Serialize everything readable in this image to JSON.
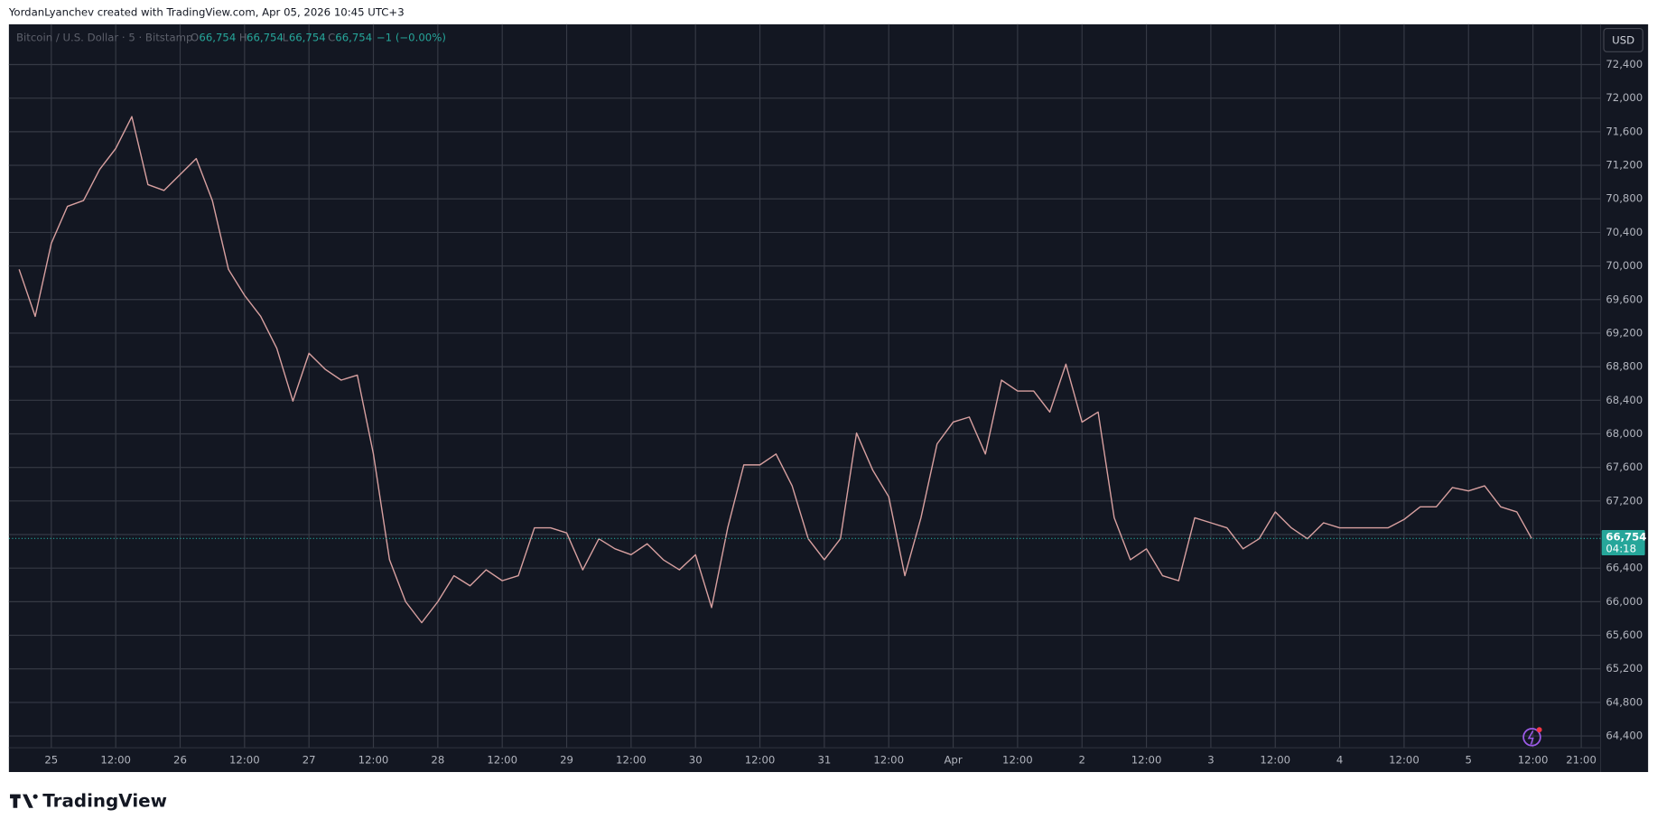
{
  "header": {
    "caption": "YordanLyanchev created with TradingView.com, Apr 05, 2026 10:45 UTC+3"
  },
  "legend": {
    "symbol": "Bitcoin / U.S. Dollar · 5 · Bitstamp",
    "open_key": "O",
    "open": "66,754",
    "high_key": "H",
    "high": "66,754",
    "low_key": "L",
    "low": "66,754",
    "close_key": "C",
    "close": "66,754",
    "change": "−1 (−0.00%)"
  },
  "currency_button": "USD",
  "footer": {
    "logo": "TradingView"
  },
  "chart_data": {
    "type": "line",
    "x": [
      -6,
      -3,
      0,
      3,
      6,
      9,
      12,
      15,
      18,
      21,
      24,
      27,
      30,
      33,
      36,
      39,
      42,
      45,
      48,
      51,
      54,
      57,
      60,
      63,
      66,
      69,
      72,
      75,
      78,
      81,
      84,
      87,
      90,
      93,
      96,
      99,
      102,
      105,
      108,
      111,
      114,
      117,
      120,
      123,
      126,
      129,
      132,
      135,
      138,
      141,
      144,
      147,
      150,
      153,
      156,
      159,
      162,
      165,
      168,
      171,
      174,
      177,
      180,
      183,
      186,
      189,
      192,
      195,
      198,
      201,
      204,
      207,
      210,
      213,
      216,
      219,
      222,
      225,
      228,
      231,
      234,
      237,
      240,
      243,
      246,
      249,
      252,
      255,
      258,
      261,
      264,
      267,
      270,
      273,
      275.75
    ],
    "series": [
      {
        "name": "Bitcoin / U.S. Dollar",
        "color": "#d8a0a0",
        "values": [
          69960,
          69400,
          70270,
          70710,
          70780,
          71150,
          71400,
          71780,
          70970,
          70900,
          71090,
          71280,
          70780,
          69960,
          69650,
          69400,
          69020,
          68390,
          68960,
          68770,
          68640,
          68700,
          67760,
          66500,
          66000,
          65750,
          66000,
          66310,
          66190,
          66380,
          66250,
          66310,
          66880,
          66880,
          66820,
          66380,
          66750,
          66630,
          66560,
          66690,
          66500,
          66380,
          66560,
          65930,
          66880,
          67630,
          67630,
          67760,
          67380,
          66750,
          66500,
          66750,
          68010,
          67570,
          67250,
          66310,
          67000,
          67880,
          68140,
          68200,
          67760,
          68640,
          68510,
          68510,
          68260,
          68830,
          68140,
          68260,
          67000,
          66500,
          66630,
          66310,
          66250,
          67000,
          66940,
          66880,
          66630,
          66750,
          67070,
          66880,
          66750,
          66940,
          66880,
          66880,
          66880,
          66880,
          66980,
          67130,
          67130,
          67360,
          67320,
          67380,
          67130,
          67070,
          66754
        ]
      }
    ],
    "last_price_label": "66,754",
    "countdown": "04:18",
    "xlim": [
      -7.9,
      288.6
    ],
    "xticks": [
      {
        "value": 0,
        "label": "25"
      },
      {
        "value": 12,
        "label": "12:00"
      },
      {
        "value": 24,
        "label": "26"
      },
      {
        "value": 36,
        "label": "12:00"
      },
      {
        "value": 48,
        "label": "27"
      },
      {
        "value": 60,
        "label": "12:00"
      },
      {
        "value": 72,
        "label": "28"
      },
      {
        "value": 84,
        "label": "12:00"
      },
      {
        "value": 96,
        "label": "29"
      },
      {
        "value": 108,
        "label": "12:00"
      },
      {
        "value": 120,
        "label": "30"
      },
      {
        "value": 132,
        "label": "12:00"
      },
      {
        "value": 144,
        "label": "31"
      },
      {
        "value": 156,
        "label": "12:00"
      },
      {
        "value": 168,
        "label": "Apr"
      },
      {
        "value": 180,
        "label": "12:00"
      },
      {
        "value": 192,
        "label": "2"
      },
      {
        "value": 204,
        "label": "12:00"
      },
      {
        "value": 216,
        "label": "3"
      },
      {
        "value": 228,
        "label": "12:00"
      },
      {
        "value": 240,
        "label": "4"
      },
      {
        "value": 252,
        "label": "12:00"
      },
      {
        "value": 264,
        "label": "5"
      },
      {
        "value": 276,
        "label": "12:00"
      },
      {
        "value": 285,
        "label": "21:00"
      }
    ],
    "ylim": [
      64260,
      72880
    ],
    "yticks": [
      {
        "value": 64400,
        "label": "64,400"
      },
      {
        "value": 64800,
        "label": "64,800"
      },
      {
        "value": 65200,
        "label": "65,200"
      },
      {
        "value": 65600,
        "label": "65,600"
      },
      {
        "value": 66000,
        "label": "66,000"
      },
      {
        "value": 66400,
        "label": "66,400"
      },
      {
        "value": 66800,
        "label": "66,800"
      },
      {
        "value": 67200,
        "label": "67,200"
      },
      {
        "value": 67600,
        "label": "67,600"
      },
      {
        "value": 68000,
        "label": "68,000"
      },
      {
        "value": 68400,
        "label": "68,400"
      },
      {
        "value": 68800,
        "label": "68,800"
      },
      {
        "value": 69200,
        "label": "69,200"
      },
      {
        "value": 69600,
        "label": "69,600"
      },
      {
        "value": 70000,
        "label": "70,000"
      },
      {
        "value": 70400,
        "label": "70,400"
      },
      {
        "value": 70800,
        "label": "70,800"
      },
      {
        "value": 71200,
        "label": "71,200"
      },
      {
        "value": 71600,
        "label": "71,600"
      },
      {
        "value": 72000,
        "label": "72,000"
      },
      {
        "value": 72400,
        "label": "72,400"
      }
    ],
    "grid": true
  }
}
